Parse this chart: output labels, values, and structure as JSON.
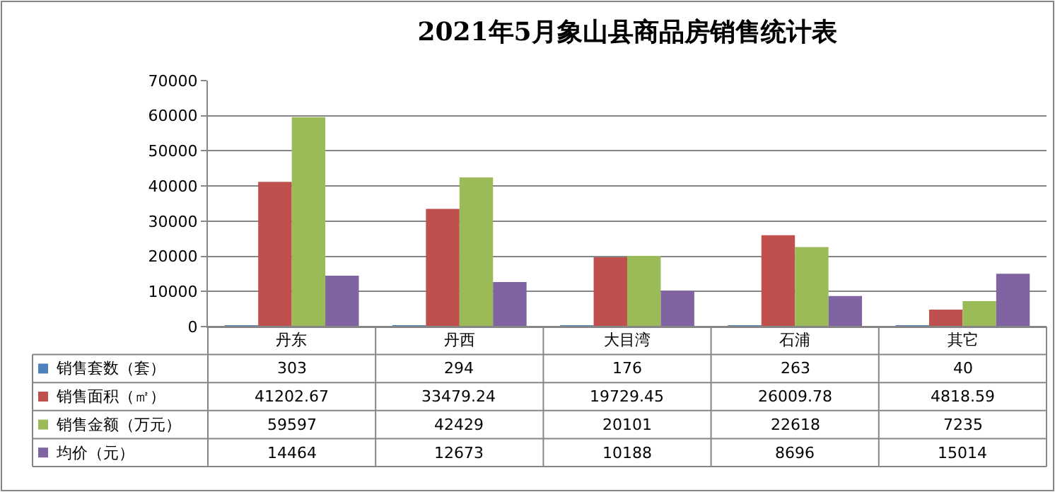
{
  "chart_data": {
    "type": "bar",
    "title": "2021年5月象山县商品房销售统计表",
    "categories": [
      "丹东",
      "丹西",
      "大目湾",
      "石浦",
      "其它"
    ],
    "series": [
      {
        "name": "销售套数（套）",
        "color": "#4f81bd",
        "values": [
          303,
          294,
          176,
          263,
          40
        ]
      },
      {
        "name": "销售面积（㎡）",
        "color": "#c0504d",
        "values": [
          41202.67,
          33479.24,
          19729.45,
          26009.78,
          4818.59
        ]
      },
      {
        "name": "销售金额（万元）",
        "color": "#9bbb59",
        "values": [
          59597,
          42429,
          20101,
          22618,
          7235
        ]
      },
      {
        "name": "均价（元）",
        "color": "#8064a2",
        "values": [
          14464,
          12673,
          10188,
          8696,
          15014
        ]
      }
    ],
    "ylim": [
      0,
      70000
    ],
    "yticks": [
      0,
      10000,
      20000,
      30000,
      40000,
      50000,
      60000,
      70000
    ],
    "grid": "y",
    "legend": "bottom",
    "data_labels": true
  }
}
